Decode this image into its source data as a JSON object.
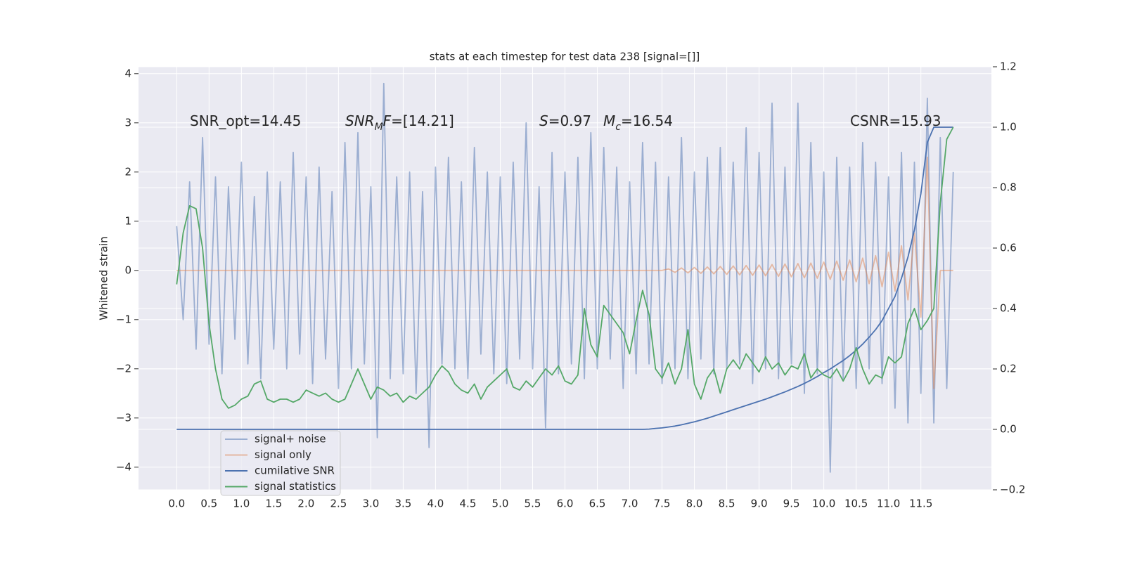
{
  "chart_data": {
    "type": "line",
    "title": "stats at each timestep for test data 238 [signal=[]]",
    "ylabel": "Whitened strain",
    "annotations": [
      [
        {
          "text": "SNR_opt=14.45"
        }
      ],
      [
        {
          "text": "SNR",
          "italic": true
        },
        {
          "text": "M",
          "italic": true,
          "sub": true
        },
        {
          "text": "F",
          "italic": true
        },
        {
          "text": "=[14.21]"
        }
      ],
      [
        {
          "text": "S",
          "italic": true
        },
        {
          "text": "=0.97"
        }
      ],
      [
        {
          "text": "M",
          "italic": true
        },
        {
          "text": "c",
          "italic": true,
          "sub": true
        },
        {
          "text": "=16.54"
        }
      ],
      [
        {
          "text": "CSNR=15.93"
        }
      ]
    ],
    "x": [
      0,
      0.1,
      0.2,
      0.3,
      0.4,
      0.5,
      0.6,
      0.7,
      0.8,
      0.9,
      1,
      1.1,
      1.2,
      1.3,
      1.4,
      1.5,
      1.6,
      1.7,
      1.8,
      1.9,
      2,
      2.1,
      2.2,
      2.3,
      2.4,
      2.5,
      2.6,
      2.7,
      2.8,
      2.9,
      3,
      3.1,
      3.2,
      3.3,
      3.4,
      3.5,
      3.6,
      3.7,
      3.8,
      3.9,
      4,
      4.1,
      4.2,
      4.3,
      4.4,
      4.5,
      4.6,
      4.7,
      4.8,
      4.9,
      5,
      5.1,
      5.2,
      5.3,
      5.4,
      5.5,
      5.6,
      5.7,
      5.8,
      5.9,
      6,
      6.1,
      6.2,
      6.3,
      6.4,
      6.5,
      6.6,
      6.7,
      6.8,
      6.9,
      7,
      7.1,
      7.2,
      7.3,
      7.4,
      7.5,
      7.6,
      7.7,
      7.8,
      7.9,
      8,
      8.1,
      8.2,
      8.3,
      8.4,
      8.5,
      8.6,
      8.7,
      8.8,
      8.9,
      9,
      9.1,
      9.2,
      9.3,
      9.4,
      9.5,
      9.6,
      9.7,
      9.8,
      9.9,
      10,
      10.1,
      10.2,
      10.3,
      10.4,
      10.5,
      10.6,
      10.7,
      10.8,
      10.9,
      11,
      11.1,
      11.2,
      11.3,
      11.4,
      11.5,
      11.6,
      11.7,
      11.8,
      11.9,
      12
    ],
    "series": [
      {
        "name": "signal+ noise",
        "color": "#4c72b0",
        "opacity": 0.5,
        "axis": "y",
        "values": [
          0.9,
          -1.0,
          1.8,
          -1.6,
          2.7,
          -1.5,
          1.9,
          -2.1,
          1.7,
          -1.4,
          2.2,
          -1.9,
          1.5,
          -2.2,
          2.0,
          -1.6,
          1.8,
          -2.0,
          2.4,
          -1.7,
          1.9,
          -2.3,
          2.1,
          -1.8,
          1.6,
          -2.4,
          2.6,
          -2.0,
          2.8,
          -1.9,
          1.7,
          -3.4,
          3.8,
          -2.2,
          1.9,
          -2.1,
          2.0,
          -2.5,
          1.6,
          -3.6,
          2.1,
          -1.9,
          2.3,
          -2.0,
          1.8,
          -2.2,
          2.5,
          -1.7,
          2.0,
          -2.1,
          1.9,
          -2.3,
          2.2,
          -1.8,
          3.0,
          -2.0,
          1.7,
          -3.2,
          2.4,
          -2.1,
          2.0,
          -1.9,
          2.3,
          -2.2,
          2.8,
          -2.0,
          2.5,
          -1.8,
          2.1,
          -2.4,
          1.8,
          -2.1,
          2.6,
          -1.9,
          2.2,
          -2.3,
          1.9,
          -2.0,
          2.7,
          -2.2,
          2.0,
          -1.8,
          2.3,
          -2.1,
          2.5,
          -2.0,
          2.2,
          -1.9,
          2.9,
          -2.3,
          2.4,
          -2.0,
          3.4,
          -2.2,
          2.1,
          -1.9,
          3.4,
          -2.5,
          2.6,
          -2.1,
          2.0,
          -4.1,
          2.3,
          -2.2,
          2.1,
          -2.4,
          2.6,
          -2.0,
          2.2,
          -2.3,
          1.9,
          -2.8,
          2.4,
          -3.1,
          2.2,
          -2.5,
          3.5,
          -3.1,
          2.7,
          -2.4,
          2.0
        ]
      },
      {
        "name": "signal only",
        "color": "#dd8452",
        "opacity": 0.5,
        "axis": "y",
        "values": [
          0,
          0,
          0,
          0,
          0,
          0,
          0,
          0,
          0,
          0,
          0,
          0,
          0,
          0,
          0,
          0,
          0,
          0,
          0,
          0,
          0,
          0,
          0,
          0,
          0,
          0,
          0,
          0,
          0,
          0,
          0,
          0,
          0,
          0,
          0,
          0,
          0,
          0,
          0,
          0,
          0,
          0,
          0,
          0,
          0,
          0,
          0,
          0,
          0,
          0,
          0,
          0,
          0,
          0,
          0,
          0,
          0,
          0,
          0,
          0,
          0,
          0,
          0,
          0,
          0,
          0,
          0,
          0,
          0,
          0,
          0,
          0,
          0,
          0,
          0,
          0,
          0.03,
          -0.04,
          0.05,
          -0.05,
          0.06,
          -0.06,
          0.07,
          -0.07,
          0.08,
          -0.08,
          0.09,
          -0.09,
          0.1,
          -0.1,
          0.11,
          -0.11,
          0.12,
          -0.12,
          0.13,
          -0.13,
          0.14,
          -0.15,
          0.15,
          -0.16,
          0.17,
          -0.18,
          0.19,
          -0.2,
          0.21,
          -0.23,
          0.25,
          -0.27,
          0.3,
          -0.33,
          0.37,
          -0.42,
          0.5,
          -0.6,
          0.75,
          -0.95,
          2.3,
          -2.4,
          0,
          0,
          0
        ]
      },
      {
        "name": "cumilative SNR",
        "color": "#4c72b0",
        "opacity": 1,
        "axis": "y2",
        "values": [
          0,
          0,
          0,
          0,
          0,
          0,
          0,
          0,
          0,
          0,
          0,
          0,
          0,
          0,
          0,
          0,
          0,
          0,
          0,
          0,
          0,
          0,
          0,
          0,
          0,
          0,
          0,
          0,
          0,
          0,
          0,
          0,
          0,
          0,
          0,
          0,
          0,
          0,
          0,
          0,
          0,
          0,
          0,
          0,
          0,
          0,
          0,
          0,
          0,
          0,
          0,
          0,
          0,
          0,
          0,
          0,
          0,
          0,
          0,
          0,
          0,
          0,
          0,
          0,
          0,
          0,
          0,
          0,
          0,
          0,
          0,
          0,
          0,
          0.001,
          0.003,
          0.005,
          0.008,
          0.011,
          0.015,
          0.02,
          0.025,
          0.031,
          0.037,
          0.044,
          0.051,
          0.058,
          0.065,
          0.072,
          0.079,
          0.086,
          0.093,
          0.1,
          0.108,
          0.116,
          0.124,
          0.133,
          0.142,
          0.152,
          0.163,
          0.175,
          0.188,
          0.2,
          0.214,
          0.228,
          0.244,
          0.262,
          0.282,
          0.305,
          0.33,
          0.36,
          0.4,
          0.44,
          0.5,
          0.57,
          0.66,
          0.78,
          0.95,
          1.0,
          1.0,
          1.0,
          1.0
        ]
      },
      {
        "name": "signal statistics",
        "color": "#55a868",
        "opacity": 1,
        "axis": "y2",
        "values": [
          0.48,
          0.65,
          0.74,
          0.73,
          0.6,
          0.35,
          0.2,
          0.1,
          0.07,
          0.08,
          0.1,
          0.11,
          0.15,
          0.16,
          0.1,
          0.09,
          0.1,
          0.1,
          0.09,
          0.1,
          0.13,
          0.12,
          0.11,
          0.12,
          0.1,
          0.09,
          0.1,
          0.15,
          0.2,
          0.15,
          0.1,
          0.14,
          0.13,
          0.11,
          0.12,
          0.09,
          0.11,
          0.1,
          0.12,
          0.14,
          0.18,
          0.21,
          0.19,
          0.15,
          0.13,
          0.12,
          0.15,
          0.1,
          0.14,
          0.16,
          0.18,
          0.2,
          0.14,
          0.13,
          0.16,
          0.14,
          0.17,
          0.2,
          0.18,
          0.21,
          0.16,
          0.15,
          0.18,
          0.4,
          0.28,
          0.24,
          0.41,
          0.38,
          0.35,
          0.32,
          0.25,
          0.36,
          0.46,
          0.38,
          0.2,
          0.17,
          0.22,
          0.15,
          0.2,
          0.33,
          0.15,
          0.1,
          0.17,
          0.2,
          0.12,
          0.2,
          0.23,
          0.2,
          0.25,
          0.22,
          0.19,
          0.24,
          0.2,
          0.22,
          0.18,
          0.21,
          0.2,
          0.25,
          0.17,
          0.2,
          0.18,
          0.17,
          0.2,
          0.16,
          0.2,
          0.27,
          0.2,
          0.15,
          0.18,
          0.17,
          0.24,
          0.22,
          0.24,
          0.35,
          0.4,
          0.33,
          0.36,
          0.4,
          0.75,
          0.96,
          1.0
        ]
      }
    ],
    "xlim": [
      -0.59,
      12.59
    ],
    "xticks": [
      {
        "value": 0,
        "label": "0.0"
      },
      {
        "value": 0.5,
        "label": "0.5"
      },
      {
        "value": 1,
        "label": "1.0"
      },
      {
        "value": 1.5,
        "label": "1.5"
      },
      {
        "value": 2,
        "label": "2.0"
      },
      {
        "value": 2.5,
        "label": "2.5"
      },
      {
        "value": 3,
        "label": "3.0"
      },
      {
        "value": 3.5,
        "label": "3.5"
      },
      {
        "value": 4,
        "label": "4.0"
      },
      {
        "value": 4.5,
        "label": "4.5"
      },
      {
        "value": 5,
        "label": "5.0"
      },
      {
        "value": 5.5,
        "label": "5.5"
      },
      {
        "value": 6,
        "label": "6.0"
      },
      {
        "value": 6.5,
        "label": "6.5"
      },
      {
        "value": 7,
        "label": "7.0"
      },
      {
        "value": 7.5,
        "label": "7.5"
      },
      {
        "value": 8,
        "label": "8.0"
      },
      {
        "value": 8.5,
        "label": "8.5"
      },
      {
        "value": 9,
        "label": "9.0"
      },
      {
        "value": 9.5,
        "label": "9.5"
      },
      {
        "value": 10,
        "label": "10.0"
      },
      {
        "value": 10.5,
        "label": "10.5"
      },
      {
        "value": 11,
        "label": "11.0"
      },
      {
        "value": 11.5,
        "label": "11.5"
      }
    ],
    "ylim": [
      -4.46,
      4.14
    ],
    "yticks": [
      {
        "value": -4,
        "label": "−4"
      },
      {
        "value": -3,
        "label": "−3"
      },
      {
        "value": -2,
        "label": "−2"
      },
      {
        "value": -1,
        "label": "−1"
      },
      0,
      1,
      2,
      3,
      4
    ],
    "y2lim": [
      -0.2,
      1.2
    ],
    "y2ticks": [
      {
        "value": -0.2,
        "label": "−0.2"
      },
      {
        "value": 0,
        "label": "0.0"
      },
      0.2,
      0.4,
      0.6,
      0.8,
      {
        "value": 1,
        "label": "1.0"
      },
      1.2
    ],
    "grid": true,
    "legend": "lower left"
  }
}
